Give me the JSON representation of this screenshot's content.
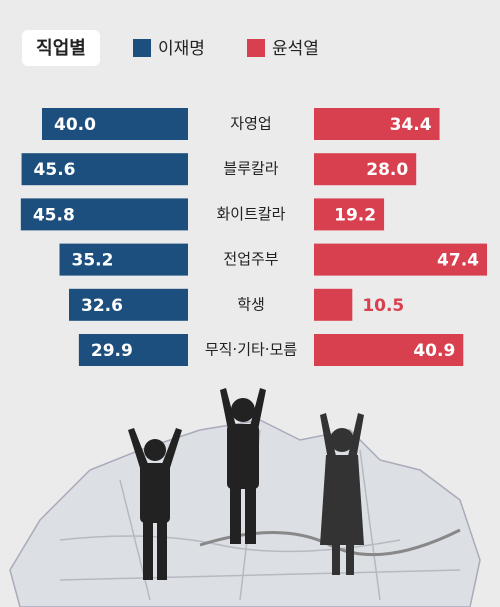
{
  "chart_data": {
    "type": "butterfly-bar",
    "title": "직업별",
    "categories": [
      "자영업",
      "블루칼라",
      "화이트칼라",
      "전업주부",
      "학생",
      "무직·기타·모름"
    ],
    "series": [
      {
        "name": "이재명",
        "color": "#1c4f7d",
        "values": [
          40,
          45.6,
          45.8,
          35.2,
          32.6,
          29.9
        ],
        "value_labels": [
          "40.0",
          "45.6",
          "45.8",
          "35.2",
          "32.6",
          "29.9"
        ]
      },
      {
        "name": "윤석열",
        "color": "#d9404f",
        "values": [
          34.4,
          28,
          19.2,
          47.4,
          10.5,
          40.9
        ],
        "value_labels": [
          "34.4",
          "28.0",
          "19.2",
          "47.4",
          "10.5",
          "40.9"
        ]
      }
    ]
  }
}
